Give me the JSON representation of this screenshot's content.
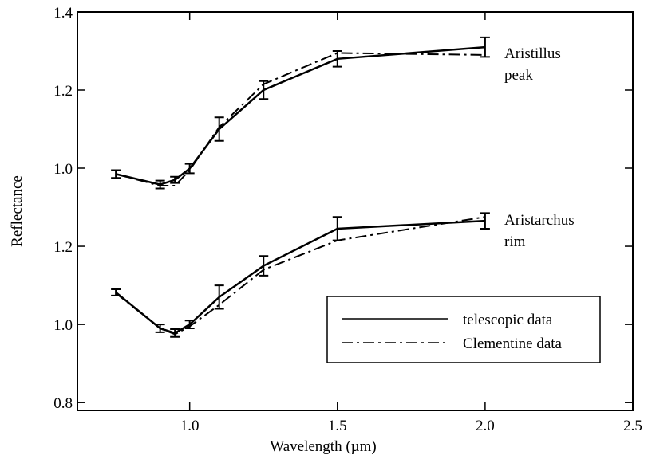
{
  "chart_data": [
    {
      "type": "line",
      "annotation": [
        "Aristillus",
        "peak"
      ],
      "x": [
        0.75,
        0.9,
        0.95,
        1.0,
        1.1,
        1.25,
        1.5,
        2.0
      ],
      "series": [
        {
          "color": "#000000",
          "style": "solid",
          "values": [
            0.985,
            0.958,
            0.97,
            0.999,
            1.1,
            1.2,
            1.28,
            1.31
          ],
          "errors": [
            0.01,
            0.01,
            0.008,
            0.012,
            0.03,
            0.023,
            0.02,
            0.025
          ]
        },
        {
          "color": "#000000",
          "style": "dashdot",
          "values": [
            0.985,
            0.955,
            0.955,
            0.995,
            1.105,
            1.215,
            1.295,
            1.29
          ]
        }
      ],
      "xlim": [
        0.62,
        2.5
      ],
      "ylim": [
        0.9,
        1.4
      ],
      "yticks": [
        {
          "value": 1.0,
          "label": "1.0"
        },
        1.2,
        1.4
      ]
    },
    {
      "type": "line",
      "annotation": [
        "Aristarchus",
        "rim"
      ],
      "xlabel": "Wavelength (µm)",
      "ylabel": "Reflectance",
      "x": [
        0.75,
        0.9,
        0.95,
        1.0,
        1.1,
        1.25,
        1.5,
        2.0
      ],
      "series": [
        {
          "name": "telescopic data",
          "color": "#000000",
          "style": "solid",
          "values": [
            1.082,
            0.99,
            0.978,
            1.0,
            1.07,
            1.15,
            1.245,
            1.265
          ],
          "errors": [
            0.008,
            0.01,
            0.01,
            0.01,
            0.03,
            0.025,
            0.03,
            0.02
          ]
        },
        {
          "name": "Clementine data",
          "color": "#000000",
          "style": "dashdot",
          "values": [
            1.08,
            0.99,
            0.975,
            0.995,
            1.05,
            1.14,
            1.215,
            1.275
          ]
        }
      ],
      "xlim": [
        0.62,
        2.5
      ],
      "ylim": [
        0.78,
        1.3
      ],
      "xticks": [
        {
          "value": 1.0,
          "label": "1.0"
        },
        1.5,
        {
          "value": 2.0,
          "label": "2.0"
        },
        2.5
      ],
      "yticks": [
        0.8,
        {
          "value": 1.0,
          "label": "1.0"
        },
        1.2
      ],
      "legend": "lower right"
    }
  ]
}
